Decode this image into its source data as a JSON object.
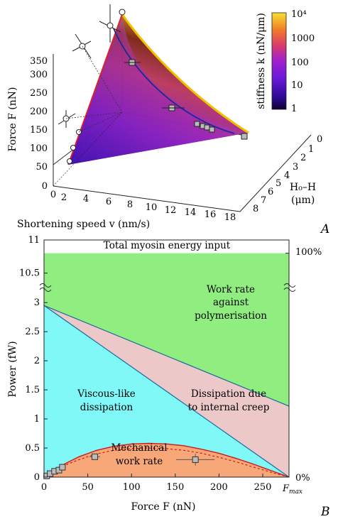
{
  "panel_labels": [
    "A",
    "B"
  ],
  "panel_a": {
    "z_axis_label": "Force F (nN)",
    "x_axis_label": "Shortening speed v (nm/s)",
    "depth_axis_label_1": "H₀–H",
    "depth_axis_label_2": "(μm)",
    "z_ticks": [
      "0",
      "50",
      "100",
      "150",
      "200",
      "250",
      "300",
      "350"
    ],
    "x_ticks": [
      "0",
      "2",
      "4",
      "6",
      "8",
      "10",
      "12",
      "14",
      "16",
      "18"
    ],
    "depth_ticks": [
      "0",
      "1",
      "2",
      "3",
      "4",
      "5",
      "6",
      "7",
      "8"
    ],
    "colorbar_label": "stiffness k (nN/μm)",
    "colorbar_ticks": [
      "10⁴",
      "1000",
      "100",
      "10",
      "1"
    ],
    "colors": {
      "surface_low": "#3a0aa8",
      "surface_mid": "#b0229a",
      "surface_high": "#f0b400",
      "edge_red": "#e02020",
      "edge_blue": "#1a2a9a"
    }
  },
  "chart_data": {
    "type": "area",
    "title": "Total myosin energy input",
    "xlabel": "Force F (nN)",
    "ylabel": "Power (fW)",
    "x_ticks": [
      "0",
      "50",
      "100",
      "150",
      "200",
      "250"
    ],
    "x_end_label": "F",
    "x_end_label_sub": "max",
    "y_ticks_lower": [
      "0",
      "0.5",
      "1",
      "1.5",
      "2",
      "2.5",
      "3"
    ],
    "y_ticks_upper": [
      "10.5",
      "11"
    ],
    "right_ticks": [
      "100%",
      "0%"
    ],
    "xlim": [
      0,
      280
    ],
    "ylim_lower": [
      0,
      3.1
    ],
    "ylim_upper": [
      10.4,
      11
    ],
    "total_energy_input": 10.8,
    "fmax": 280,
    "regions": [
      {
        "name": "Work rate against polymerisation",
        "lines": [
          "Work rate",
          "against",
          "polymerisation"
        ],
        "color": "#90ee80"
      },
      {
        "name": "Dissipation due to internal creep",
        "lines": [
          "Dissipation due",
          "to internal creep"
        ],
        "color": "#ecc8c8"
      },
      {
        "name": "Viscous-like dissipation",
        "lines": [
          "Viscous-like",
          "dissipation"
        ],
        "color": "#80f8f8"
      },
      {
        "name": "Mechanical work rate",
        "lines": [
          "Mechanical",
          "work rate"
        ],
        "color": "#f8a878"
      }
    ],
    "series": [
      {
        "kind": "boundary",
        "x": [
          0,
          280
        ],
        "y": [
          2.95,
          1.22
        ],
        "color": "#1a6a9a"
      },
      {
        "kind": "boundary",
        "x": [
          0,
          280
        ],
        "y": [
          2.95,
          0
        ],
        "color": "#1a6a9a"
      },
      {
        "kind": "model",
        "x": [
          0,
          20,
          40,
          60,
          80,
          100,
          120,
          140,
          160,
          180,
          200,
          220,
          240,
          260,
          280
        ],
        "y": [
          0,
          0.2,
          0.35,
          0.46,
          0.53,
          0.57,
          0.58,
          0.57,
          0.54,
          0.48,
          0.41,
          0.32,
          0.22,
          0.11,
          0
        ],
        "color": "#d01818"
      },
      {
        "kind": "fit",
        "x": [
          0,
          20,
          40,
          60,
          80,
          100,
          120,
          140,
          160,
          180,
          200,
          220,
          240,
          260,
          280
        ],
        "y": [
          0,
          0.18,
          0.3,
          0.4,
          0.46,
          0.49,
          0.5,
          0.49,
          0.46,
          0.41,
          0.34,
          0.26,
          0.17,
          0.08,
          0
        ],
        "color": "#d01818"
      },
      {
        "kind": "measured",
        "x": [
          3,
          7,
          12,
          17,
          21,
          58,
          173
        ],
        "y": [
          0.02,
          0.06,
          0.1,
          0.12,
          0.17,
          0.35,
          0.3
        ],
        "x_err": [
          0,
          0,
          0,
          0,
          0,
          6,
          22
        ],
        "y_err": [
          0,
          0,
          0,
          0,
          0,
          0.05,
          0.1
        ]
      }
    ]
  }
}
